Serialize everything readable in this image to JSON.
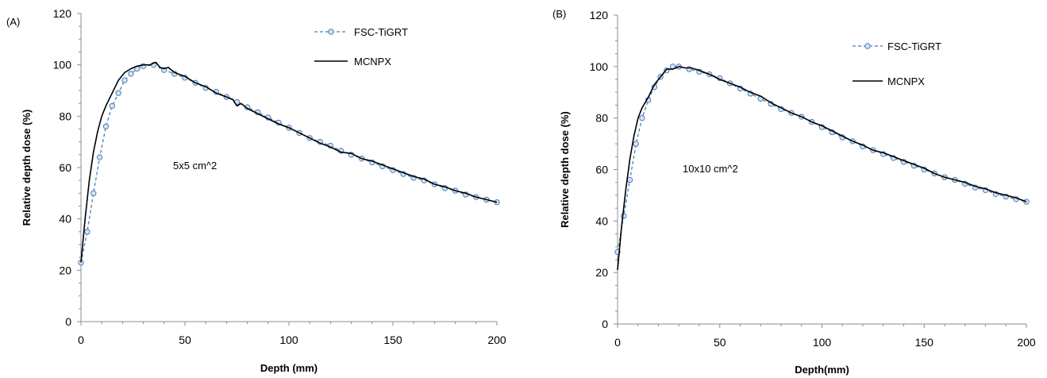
{
  "chart_data": [
    {
      "type": "line",
      "panel_label": "(A)",
      "annotation": "5x5 cm^2",
      "xlabel": "Depth (mm)",
      "ylabel": "Relative depth dose (%)",
      "xlim": [
        0,
        200
      ],
      "ylim": [
        0,
        120
      ],
      "x_ticks": [
        "0",
        "50",
        "100",
        "150",
        "200"
      ],
      "y_ticks": [
        "0",
        "20",
        "40",
        "60",
        "80",
        "100",
        "120"
      ],
      "grid": false,
      "legend_position": "top-right",
      "series": [
        {
          "name": "FSC-TiGRT",
          "color": "#4a7ebb",
          "style": "dashed-circle-markers",
          "x": [
            0,
            3,
            6,
            9,
            12,
            15,
            18,
            21,
            24,
            27,
            30,
            35,
            40,
            45,
            50,
            55,
            60,
            65,
            70,
            75,
            80,
            85,
            90,
            95,
            100,
            105,
            110,
            115,
            120,
            125,
            130,
            135,
            140,
            145,
            150,
            155,
            160,
            165,
            170,
            175,
            180,
            185,
            190,
            195,
            200
          ],
          "y": [
            23,
            35,
            50,
            64,
            76,
            84,
            89,
            94,
            96.5,
            98.5,
            99.5,
            100,
            98,
            96.5,
            95,
            93,
            91,
            89.5,
            87.5,
            85.5,
            83.5,
            81.5,
            79.5,
            77.5,
            75.5,
            73.5,
            71.5,
            70,
            68.5,
            66.5,
            65,
            63.5,
            62,
            60.5,
            59,
            57.5,
            56,
            55,
            53.5,
            52,
            51,
            49.5,
            48.5,
            47.5,
            46.5
          ]
        },
        {
          "name": "MCNPX",
          "color": "#000000",
          "style": "solid",
          "x": [
            0,
            2,
            4,
            6,
            8,
            10,
            12,
            15,
            18,
            21,
            24,
            27,
            30,
            33,
            36,
            38,
            40,
            42,
            45,
            50,
            55,
            60,
            65,
            70,
            73,
            75,
            77,
            80,
            85,
            90,
            95,
            100,
            105,
            110,
            115,
            120,
            125,
            130,
            135,
            140,
            145,
            150,
            155,
            160,
            165,
            170,
            175,
            180,
            185,
            190,
            195,
            200
          ],
          "y": [
            23,
            40,
            55,
            66,
            74,
            80,
            84,
            89,
            94,
            97,
            98.5,
            99.5,
            100,
            100,
            101,
            99,
            98.5,
            99,
            97,
            95.5,
            93,
            91.5,
            89,
            87.5,
            86.5,
            84,
            85,
            83,
            81,
            79,
            77,
            75.5,
            73.5,
            71.5,
            69.5,
            68,
            66,
            65.5,
            63.5,
            62.5,
            61,
            59.5,
            58,
            56.5,
            55.5,
            53.5,
            52.5,
            51,
            50,
            48.5,
            47.5,
            46.5
          ]
        }
      ]
    },
    {
      "type": "line",
      "panel_label": "(B)",
      "annotation": "10x10 cm^2",
      "xlabel": "Depth(mm)",
      "ylabel": "Relative depth dose (%)",
      "xlim": [
        0,
        200
      ],
      "ylim": [
        0,
        120
      ],
      "x_ticks": [
        "0",
        "50",
        "100",
        "150",
        "200"
      ],
      "y_ticks": [
        "0",
        "20",
        "40",
        "60",
        "80",
        "100",
        "120"
      ],
      "grid": false,
      "legend_position": "top-right",
      "series": [
        {
          "name": "FSC-TiGRT",
          "color": "#4a7ebb",
          "style": "dashed-circle-markers",
          "x": [
            0,
            3,
            6,
            9,
            12,
            15,
            18,
            21,
            24,
            27,
            30,
            35,
            40,
            45,
            50,
            55,
            60,
            65,
            70,
            75,
            80,
            85,
            90,
            95,
            100,
            105,
            110,
            115,
            120,
            125,
            130,
            135,
            140,
            145,
            150,
            155,
            160,
            165,
            170,
            175,
            180,
            185,
            190,
            195,
            200
          ],
          "y": [
            28,
            42,
            56,
            70,
            80,
            87,
            92,
            96,
            98.5,
            100,
            100,
            99,
            98,
            97,
            95.5,
            93.5,
            91.5,
            89.5,
            87.5,
            85.5,
            83.5,
            82,
            80.5,
            78.5,
            76.5,
            74.5,
            72.5,
            71,
            69,
            67.5,
            66,
            64.5,
            63,
            61.5,
            60,
            58.5,
            57,
            56,
            54.5,
            53,
            52,
            50.5,
            49.5,
            48.5,
            47.5
          ]
        },
        {
          "name": "MCNPX",
          "color": "#000000",
          "style": "solid",
          "x": [
            0,
            2,
            4,
            6,
            8,
            10,
            12,
            15,
            18,
            21,
            24,
            27,
            30,
            33,
            36,
            40,
            45,
            50,
            55,
            60,
            65,
            70,
            73,
            76,
            80,
            85,
            90,
            95,
            100,
            105,
            110,
            115,
            120,
            125,
            130,
            135,
            140,
            145,
            150,
            155,
            160,
            165,
            170,
            175,
            180,
            185,
            190,
            195,
            200
          ],
          "y": [
            21,
            38,
            52,
            64,
            73,
            80,
            84,
            88,
            93,
            96,
            99,
            99,
            100,
            99.5,
            99.5,
            98.5,
            97,
            95,
            93.5,
            92,
            90,
            88.5,
            87,
            85.5,
            84,
            82,
            80.5,
            78.5,
            77,
            75,
            73,
            71,
            69.5,
            67.5,
            66.5,
            65,
            63.5,
            62,
            60.5,
            58.5,
            57,
            56,
            55,
            53.5,
            52.5,
            51,
            50,
            49,
            47.5
          ]
        }
      ]
    }
  ]
}
